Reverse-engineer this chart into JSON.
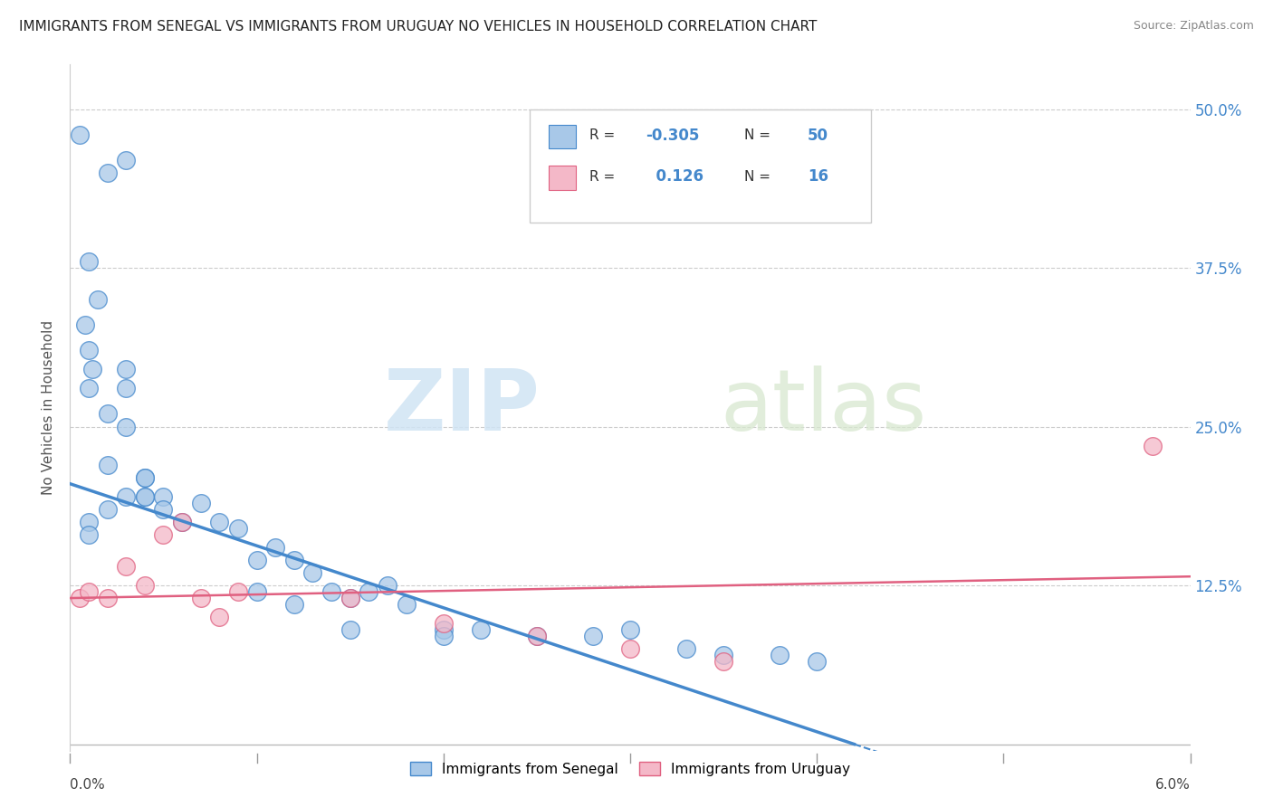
{
  "title": "IMMIGRANTS FROM SENEGAL VS IMMIGRANTS FROM URUGUAY NO VEHICLES IN HOUSEHOLD CORRELATION CHART",
  "source": "Source: ZipAtlas.com",
  "ylabel": "No Vehicles in Household",
  "ytick_vals": [
    0.0,
    0.125,
    0.25,
    0.375,
    0.5
  ],
  "ytick_labels": [
    "",
    "12.5%",
    "25.0%",
    "37.5%",
    "50.0%"
  ],
  "xmin": 0.0,
  "xmax": 0.06,
  "ymin": -0.005,
  "ymax": 0.535,
  "senegal_color": "#a8c8e8",
  "uruguay_color": "#f4b8c8",
  "senegal_line_color": "#4488cc",
  "uruguay_line_color": "#e06080",
  "tick_color": "#4488cc",
  "r_senegal": -0.305,
  "n_senegal": 50,
  "r_uruguay": 0.126,
  "n_uruguay": 16,
  "watermark_zip": "ZIP",
  "watermark_atlas": "atlas",
  "legend_label_senegal": "Immigrants from Senegal",
  "legend_label_uruguay": "Immigrants from Uruguay",
  "senegal_x": [
    0.001,
    0.0005,
    0.002,
    0.003,
    0.001,
    0.0008,
    0.001,
    0.0012,
    0.0015,
    0.002,
    0.002,
    0.003,
    0.003,
    0.004,
    0.004,
    0.003,
    0.004,
    0.005,
    0.001,
    0.001,
    0.002,
    0.003,
    0.004,
    0.005,
    0.006,
    0.007,
    0.008,
    0.009,
    0.01,
    0.011,
    0.012,
    0.013,
    0.014,
    0.015,
    0.016,
    0.017,
    0.018,
    0.02,
    0.022,
    0.025,
    0.028,
    0.03,
    0.033,
    0.035,
    0.038,
    0.04,
    0.01,
    0.012,
    0.015,
    0.02
  ],
  "senegal_y": [
    0.38,
    0.48,
    0.45,
    0.46,
    0.31,
    0.33,
    0.28,
    0.295,
    0.35,
    0.26,
    0.22,
    0.28,
    0.25,
    0.21,
    0.195,
    0.295,
    0.21,
    0.195,
    0.175,
    0.165,
    0.185,
    0.195,
    0.195,
    0.185,
    0.175,
    0.19,
    0.175,
    0.17,
    0.145,
    0.155,
    0.145,
    0.135,
    0.12,
    0.115,
    0.12,
    0.125,
    0.11,
    0.09,
    0.09,
    0.085,
    0.085,
    0.09,
    0.075,
    0.07,
    0.07,
    0.065,
    0.12,
    0.11,
    0.09,
    0.085
  ],
  "uruguay_x": [
    0.0005,
    0.001,
    0.002,
    0.003,
    0.004,
    0.005,
    0.006,
    0.007,
    0.008,
    0.009,
    0.015,
    0.02,
    0.025,
    0.03,
    0.035,
    0.058
  ],
  "uruguay_y": [
    0.115,
    0.12,
    0.115,
    0.14,
    0.125,
    0.165,
    0.175,
    0.115,
    0.1,
    0.12,
    0.115,
    0.095,
    0.085,
    0.075,
    0.065,
    0.235
  ],
  "senegal_line_x0": 0.0,
  "senegal_line_y0": 0.205,
  "senegal_line_x1": 0.042,
  "senegal_line_y1": 0.0,
  "uruguay_line_x0": 0.0,
  "uruguay_line_y0": 0.115,
  "uruguay_line_x1": 0.06,
  "uruguay_line_y1": 0.132
}
